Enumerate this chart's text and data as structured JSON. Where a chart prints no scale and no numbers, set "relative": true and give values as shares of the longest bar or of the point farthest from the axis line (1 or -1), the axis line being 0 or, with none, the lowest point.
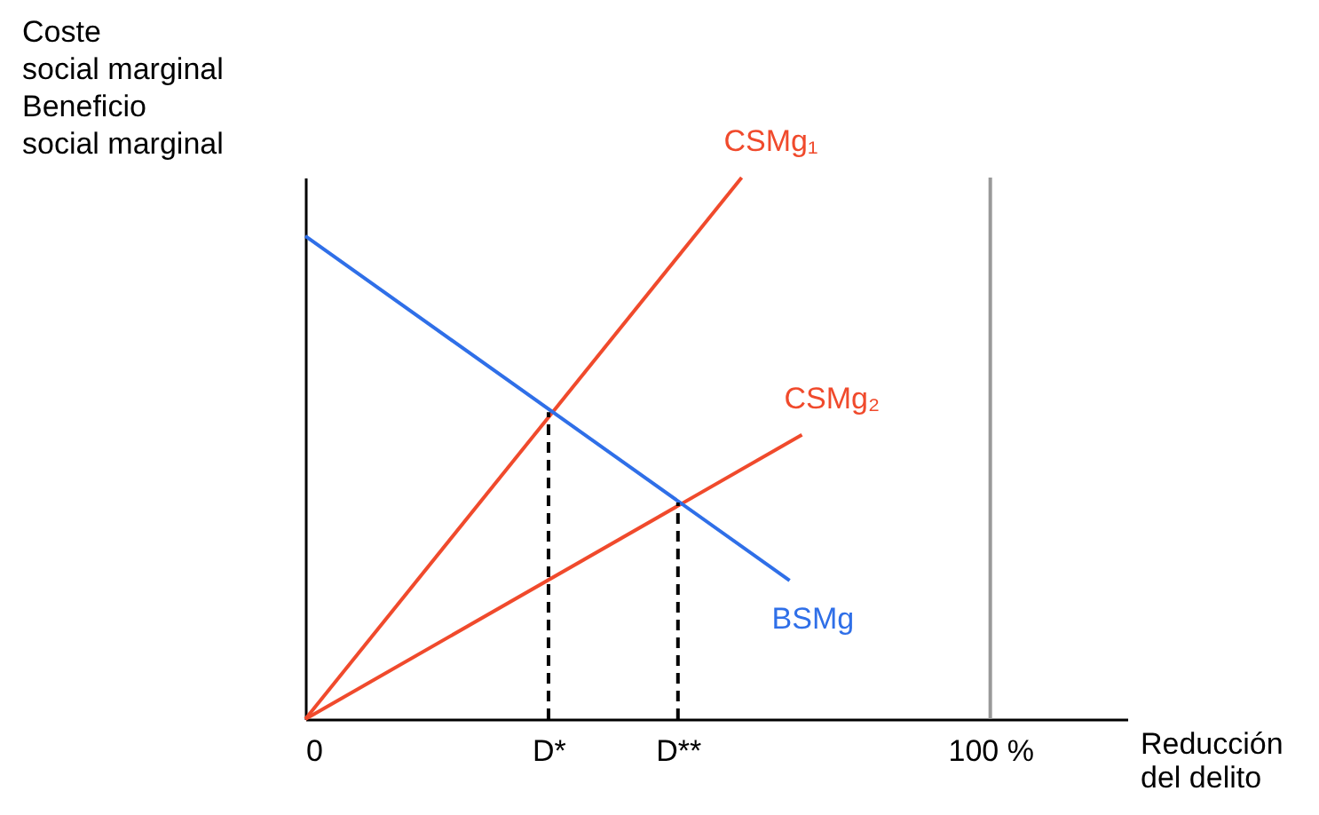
{
  "chart_data": {
    "type": "line",
    "relative": true,
    "ylabel": "Coste\nsocial marginal\nBeneficio\nsocial marginal",
    "xlabel": "Reducción\ndel delito",
    "xlim": [
      0,
      120
    ],
    "xticks": [
      0,
      {
        "value": 35.5,
        "label": "D*"
      },
      {
        "value": 54.4,
        "label": "D**"
      },
      {
        "value": 100,
        "label": "100 %"
      }
    ],
    "series": [
      {
        "name": "CSMg₁",
        "color": "#f04a2c",
        "x": [
          0,
          63.7
        ],
        "values": [
          0,
          1
        ]
      },
      {
        "name": "CSMg₂",
        "color": "#f04a2c",
        "x": [
          0,
          72.5
        ],
        "values": [
          0,
          0.525
        ]
      },
      {
        "name": "BSMg",
        "color": "#2f6fe8",
        "x": [
          0,
          70.7
        ],
        "values": [
          0.892,
          0.256
        ]
      },
      {
        "color": "#000000",
        "line_style": "dashed",
        "x": [
          35.5,
          35.5
        ],
        "values": [
          0,
          0.567
        ]
      },
      {
        "color": "#000000",
        "line_style": "dashed",
        "x": [
          54.4,
          54.4
        ],
        "values": [
          0,
          0.4
        ]
      }
    ],
    "ref_lines": [
      {
        "axis": "x",
        "value": 100,
        "color": "#999999"
      }
    ],
    "marker": "none",
    "grid": false
  }
}
